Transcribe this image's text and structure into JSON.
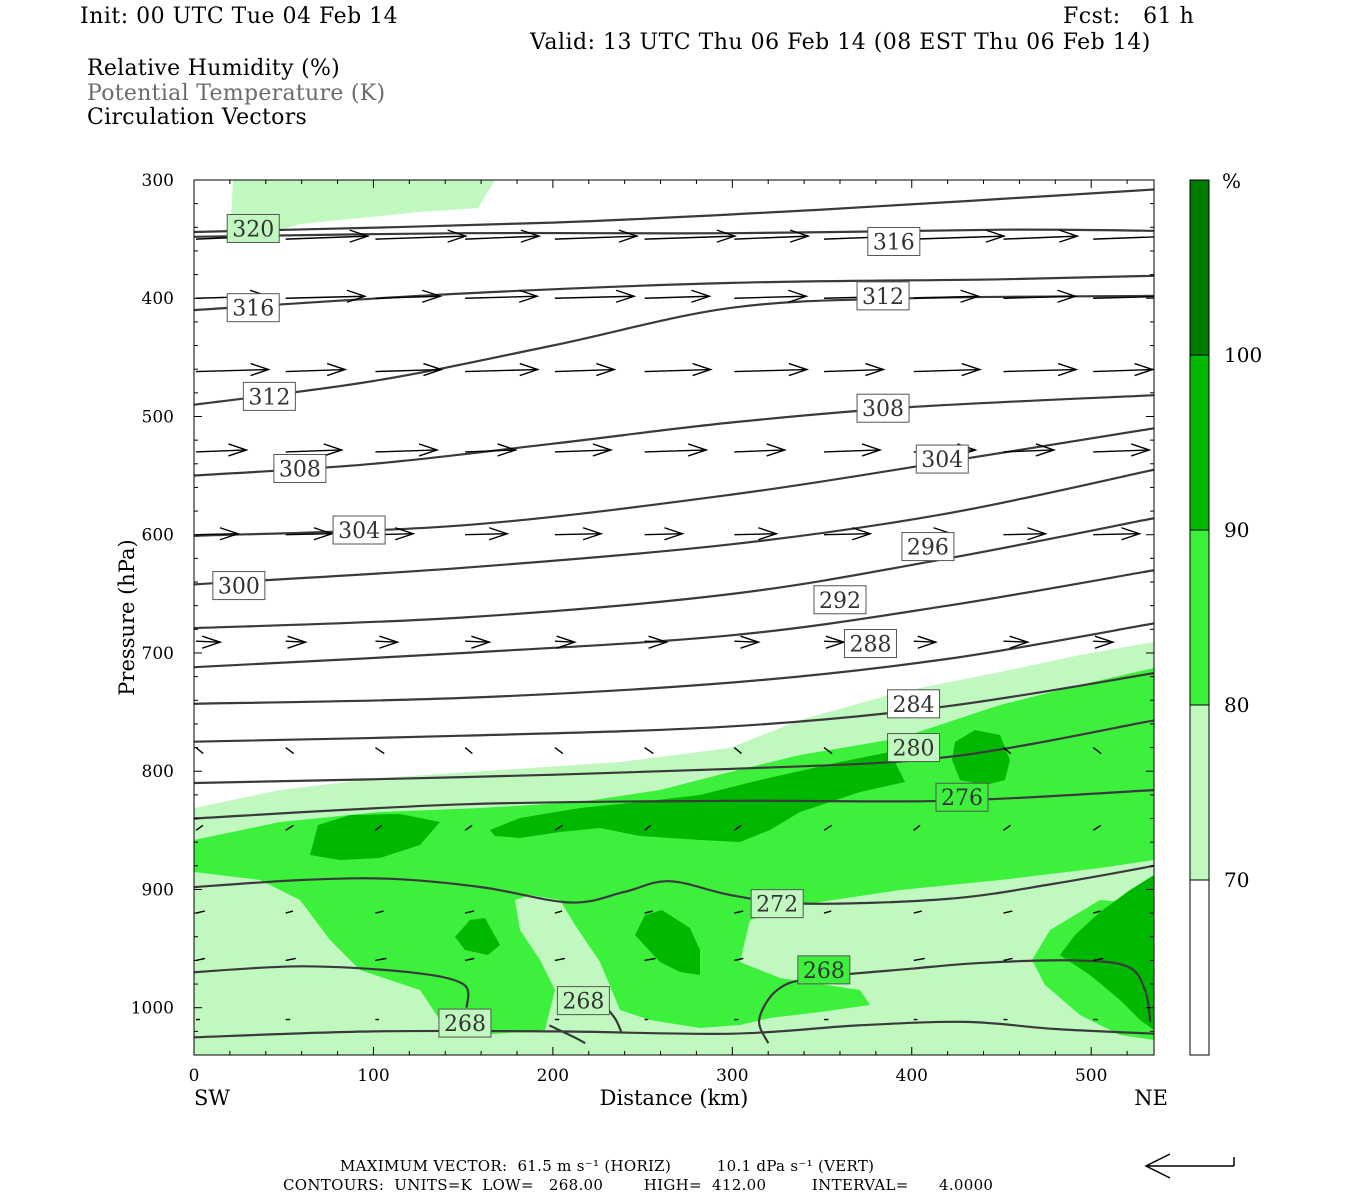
{
  "header": {
    "init": "Init: 00 UTC Tue 04 Feb 14",
    "fcst": "Fcst:   61 h",
    "valid": "Valid: 13 UTC Thu 06 Feb 14 (08 EST Thu 06 Feb 14)"
  },
  "legend": {
    "line1": "Relative Humidity (%)",
    "line2": "Potential Temperature (K)",
    "line3": "Circulation Vectors"
  },
  "footer": {
    "max_vector": "MAXIMUM VECTOR:  61.5 m s⁻¹ (HORIZ)         10.1 dPa s⁻¹ (VERT)",
    "contours": "CONTOURS:  UNITS=K  LOW=   268.00        HIGH=  412.00         INTERVAL=      4.0000"
  },
  "colors": {
    "rh70": "#c0f8c0",
    "rh80": "#3cf03c",
    "rh90": "#00b800",
    "rh100": "#007a00",
    "theta_line": "#3a3a3a",
    "gray_text": "#6b6b6b"
  },
  "chart_data": {
    "type": "cross-section",
    "xlabel": "Distance (km)",
    "ylabel": "Pressure (hPa)",
    "x_ticks": [
      0,
      100,
      200,
      300,
      400,
      500
    ],
    "y_ticks": [
      300,
      400,
      500,
      600,
      700,
      800,
      900,
      1000
    ],
    "xlim": [
      0,
      535
    ],
    "ylim": [
      300,
      1040
    ],
    "y_inverted": true,
    "endpoints": {
      "left": "SW",
      "right": "NE"
    },
    "colorbar": {
      "unit": "%",
      "levels": [
        70,
        80,
        90,
        100
      ]
    },
    "theta_labels": [
      {
        "value": "320",
        "x": 33,
        "p": 341,
        "filled": "rh70"
      },
      {
        "value": "316",
        "x": 390,
        "p": 352,
        "filled": "none"
      },
      {
        "value": "316",
        "x": 33,
        "p": 408,
        "filled": "none"
      },
      {
        "value": "312",
        "x": 384,
        "p": 398,
        "filled": "none"
      },
      {
        "value": "312",
        "x": 42,
        "p": 483,
        "filled": "none"
      },
      {
        "value": "308",
        "x": 384,
        "p": 493,
        "filled": "none"
      },
      {
        "value": "308",
        "x": 59,
        "p": 544,
        "filled": "none"
      },
      {
        "value": "304",
        "x": 417,
        "p": 536,
        "filled": "none"
      },
      {
        "value": "304",
        "x": 92,
        "p": 596,
        "filled": "none"
      },
      {
        "value": "296",
        "x": 409,
        "p": 610,
        "filled": "none"
      },
      {
        "value": "300",
        "x": 25,
        "p": 643,
        "filled": "none"
      },
      {
        "value": "292",
        "x": 360,
        "p": 655,
        "filled": "none"
      },
      {
        "value": "288",
        "x": 377,
        "p": 692,
        "filled": "none"
      },
      {
        "value": "284",
        "x": 401,
        "p": 743,
        "filled": "none"
      },
      {
        "value": "280",
        "x": 401,
        "p": 780,
        "filled": "rh70"
      },
      {
        "value": "276",
        "x": 428,
        "p": 822,
        "filled": "rh80"
      },
      {
        "value": "272",
        "x": 325,
        "p": 912,
        "filled": "rh70"
      },
      {
        "value": "268",
        "x": 351,
        "p": 968,
        "filled": "rh80"
      },
      {
        "value": "268",
        "x": 217,
        "p": 994,
        "filled": "rh70"
      },
      {
        "value": "268",
        "x": 151,
        "p": 1013,
        "filled": "rh70"
      }
    ]
  }
}
